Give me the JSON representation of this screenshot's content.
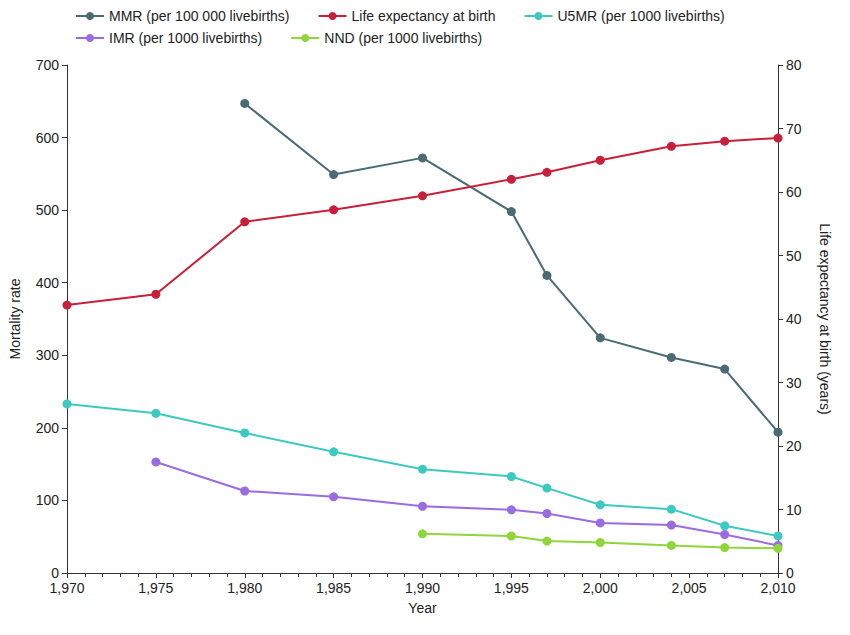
{
  "chart_data": {
    "type": "line",
    "x_label": "Year",
    "y_label": "Mortality rate",
    "y2_label": "Life expectancy at birth (years)",
    "x": [
      1970,
      1975,
      1980,
      1985,
      1990,
      1995,
      1997,
      2000,
      2004,
      2007,
      2010
    ],
    "xlim": [
      1970,
      2010
    ],
    "xticks": [
      1970,
      1975,
      1980,
      1985,
      1990,
      1995,
      2000,
      2005,
      2010
    ],
    "ylim": [
      0,
      700
    ],
    "yticks": [
      0,
      100,
      200,
      300,
      400,
      500,
      600,
      700
    ],
    "y2lim": [
      0,
      80
    ],
    "y2ticks": [
      0,
      10,
      20,
      30,
      40,
      50,
      60,
      70,
      80
    ],
    "grid": false,
    "legend": "top",
    "series": [
      {
        "name": "MMR (per 100 000 livebirths)",
        "color": "#4a6b73",
        "marker": "circle",
        "values": [
          null,
          null,
          647,
          549,
          572,
          498,
          410,
          324,
          297,
          281,
          194
        ]
      },
      {
        "name": "Life expectancy at birth",
        "color": "#c8203a",
        "marker": "circle",
        "axis": "y2",
        "values": [
          42.2,
          43.9,
          55.3,
          57.2,
          59.4,
          62.0,
          63.1,
          65.0,
          67.2,
          68.0,
          68.5
        ]
      },
      {
        "name": "U5MR (per 1000 livebirths)",
        "color": "#3cc9c0",
        "marker": "circle",
        "values": [
          233,
          220,
          193,
          167,
          143,
          133,
          117,
          94,
          88,
          65,
          51
        ]
      },
      {
        "name": "IMR (per 1000 livebirths)",
        "color": "#9b6be0",
        "marker": "circle",
        "values": [
          null,
          153,
          113,
          105,
          92,
          87,
          82,
          69,
          66,
          53,
          38
        ]
      },
      {
        "name": "NND (per 1000 livebirths)",
        "color": "#8fd63a",
        "marker": "circle",
        "values": [
          null,
          null,
          null,
          null,
          54,
          51,
          44,
          42,
          38,
          35,
          34
        ]
      }
    ]
  }
}
